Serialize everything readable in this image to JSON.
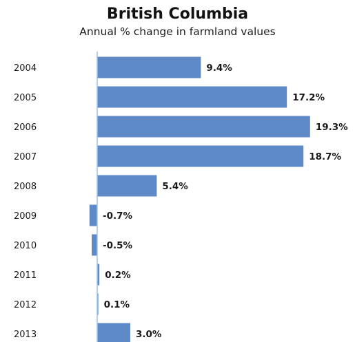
{
  "chart_data": {
    "type": "bar",
    "orientation": "horizontal",
    "title": "British Columbia",
    "subtitle": "Annual % change in farmland values",
    "categories": [
      "2004",
      "2005",
      "2006",
      "2007",
      "2008",
      "2009",
      "2010",
      "2011",
      "2012",
      "2013"
    ],
    "values": [
      9.4,
      17.2,
      19.3,
      18.7,
      5.4,
      -0.7,
      -0.5,
      0.2,
      0.1,
      3.0
    ],
    "data_labels": [
      "9.4%",
      "17.2%",
      "19.3%",
      "18.7%",
      "5.4%",
      "-0.7%",
      "-0.5%",
      "0.2%",
      "0.1%",
      "3.0%"
    ],
    "xlim": [
      -0.7,
      19.3
    ],
    "grid": false,
    "legend": "none",
    "bar_color": "#5f8ac8",
    "axis_color": "#9cc3e8"
  }
}
